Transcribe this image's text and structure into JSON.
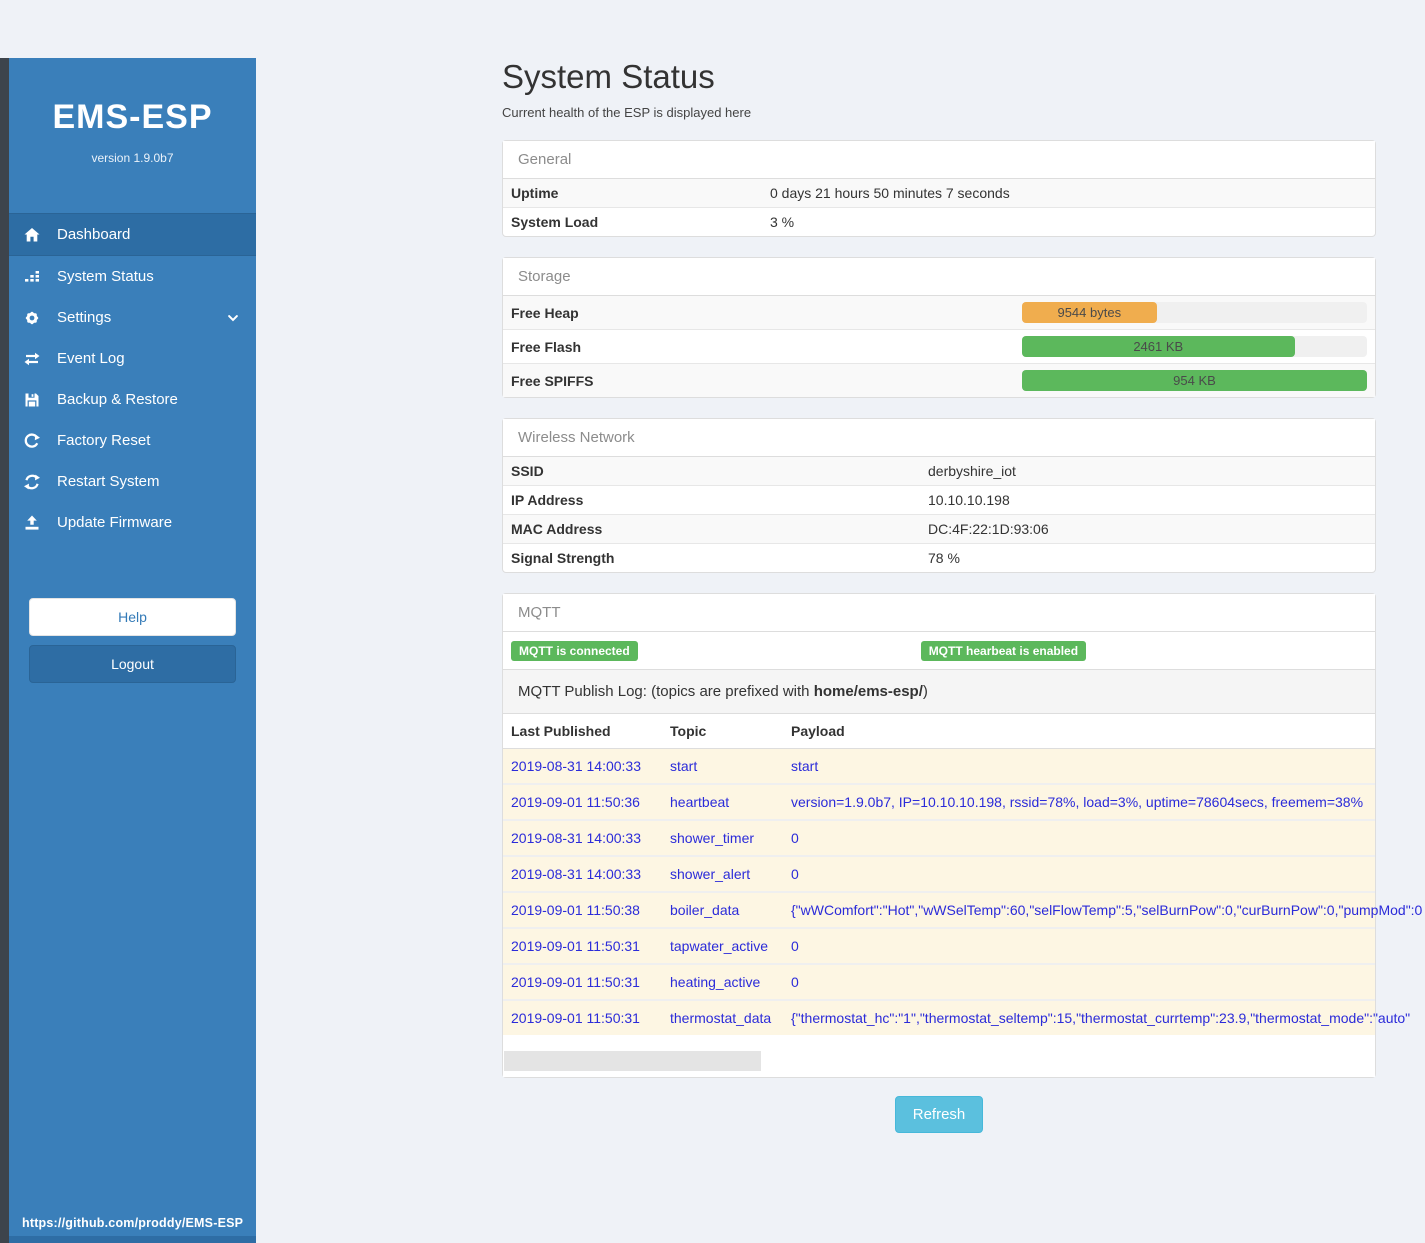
{
  "sidebar": {
    "title": "EMS-ESP",
    "version": "version 1.9.0b7",
    "items": [
      {
        "label": "Dashboard",
        "icon": "home-icon",
        "active": true,
        "chevron": false
      },
      {
        "label": "System Status",
        "icon": "chart-icon",
        "active": false,
        "chevron": false
      },
      {
        "label": "Settings",
        "icon": "gear-icon",
        "active": false,
        "chevron": true
      },
      {
        "label": "Event Log",
        "icon": "exchange-icon",
        "active": false,
        "chevron": false
      },
      {
        "label": "Backup & Restore",
        "icon": "save-icon",
        "active": false,
        "chevron": false
      },
      {
        "label": "Factory Reset",
        "icon": "redo-icon",
        "active": false,
        "chevron": false
      },
      {
        "label": "Restart System",
        "icon": "sync-icon",
        "active": false,
        "chevron": false
      },
      {
        "label": "Update Firmware",
        "icon": "upload-icon",
        "active": false,
        "chevron": false
      }
    ],
    "help_label": "Help",
    "logout_label": "Logout",
    "footer_link": "https://github.com/proddy/EMS-ESP"
  },
  "header": {
    "title": "System Status",
    "subtitle": "Current health of the ESP is displayed here"
  },
  "panels": {
    "general": {
      "title": "General",
      "rows": [
        {
          "label": "Uptime",
          "value": "0 days 21 hours 50 minutes 7 seconds"
        },
        {
          "label": "System Load",
          "value": "3 %"
        }
      ]
    },
    "storage": {
      "title": "Storage",
      "rows": [
        {
          "label": "Free Heap",
          "value": "9544 bytes",
          "percent": 39,
          "color": "#f0ad4e"
        },
        {
          "label": "Free Flash",
          "value": "2461 KB",
          "percent": 79,
          "color": "#5cb85c"
        },
        {
          "label": "Free SPIFFS",
          "value": "954 KB",
          "percent": 100,
          "color": "#5cb85c"
        }
      ]
    },
    "wireless": {
      "title": "Wireless Network",
      "rows": [
        {
          "label": "SSID",
          "value": "derbyshire_iot"
        },
        {
          "label": "IP Address",
          "value": "10.10.10.198"
        },
        {
          "label": "MAC Address",
          "value": "DC:4F:22:1D:93:06"
        },
        {
          "label": "Signal Strength",
          "value": "78 %"
        }
      ]
    },
    "mqtt": {
      "title": "MQTT",
      "badges": [
        "MQTT is connected",
        "MQTT hearbeat is enabled"
      ],
      "publish_log_prefix": "MQTT Publish Log: (topics are prefixed with ",
      "publish_log_bold": "home/ems-esp/",
      "publish_log_suffix": ")",
      "table": {
        "headers": [
          "Last Published",
          "Topic",
          "Payload"
        ],
        "rows": [
          {
            "last_published": "2019-08-31 14:00:33",
            "topic": "start",
            "payload": "start"
          },
          {
            "last_published": "2019-09-01 11:50:36",
            "topic": "heartbeat",
            "payload": "version=1.9.0b7, IP=10.10.10.198, rssid=78%, load=3%, uptime=78604secs, freemem=38%"
          },
          {
            "last_published": "2019-08-31 14:00:33",
            "topic": "shower_timer",
            "payload": "0"
          },
          {
            "last_published": "2019-08-31 14:00:33",
            "topic": "shower_alert",
            "payload": "0"
          },
          {
            "last_published": "2019-09-01 11:50:38",
            "topic": "boiler_data",
            "payload": "{\"wWComfort\":\"Hot\",\"wWSelTemp\":60,\"selFlowTemp\":5,\"selBurnPow\":0,\"curBurnPow\":0,\"pumpMod\":0"
          },
          {
            "last_published": "2019-09-01 11:50:31",
            "topic": "tapwater_active",
            "payload": "0"
          },
          {
            "last_published": "2019-09-01 11:50:31",
            "topic": "heating_active",
            "payload": "0"
          },
          {
            "last_published": "2019-09-01 11:50:31",
            "topic": "thermostat_data",
            "payload": "{\"thermostat_hc\":\"1\",\"thermostat_seltemp\":15,\"thermostat_currtemp\":23.9,\"thermostat_mode\":\"auto\""
          }
        ]
      }
    }
  },
  "refresh_label": "Refresh",
  "colors": {
    "sidebar": "#3a7fba",
    "sidebar_active": "#2d6da4",
    "accent_blue": "#337ab7",
    "warning_orange": "#f0ad4e",
    "success_green": "#5cb85c",
    "info_cyan": "#5bc0de",
    "log_row_bg": "#fdf6e3",
    "log_text": "#2b2bd9"
  }
}
